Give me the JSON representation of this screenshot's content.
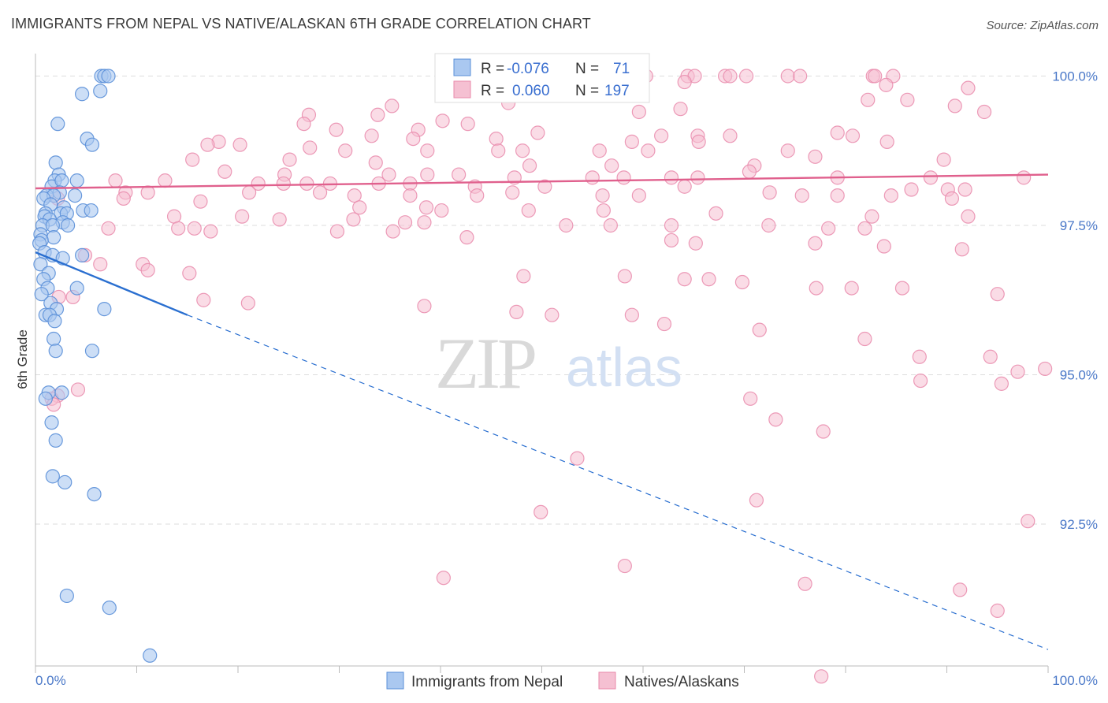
{
  "title": "IMMIGRANTS FROM NEPAL VS NATIVE/ALASKAN 6TH GRADE CORRELATION CHART",
  "source": "Source: ZipAtlas.com",
  "watermark": {
    "zip": "ZIP",
    "atlas": "atlas"
  },
  "colors": {
    "blue_fill": "#aac8f0",
    "blue_stroke": "#5a8fd8",
    "blue_line": "#2a6fd0",
    "pink_fill": "#f5c0d2",
    "pink_stroke": "#e98aab",
    "pink_line": "#e0608d",
    "grid": "#dddddd",
    "tick_text": "#4a78c8"
  },
  "chart_data": {
    "type": "scatter",
    "title": "IMMIGRANTS FROM NEPAL VS NATIVE/ALASKAN 6TH GRADE CORRELATION CHART",
    "xlabel": "",
    "ylabel": "6th Grade",
    "xlim": [
      0,
      100
    ],
    "ylim": [
      90.0,
      100.4
    ],
    "x_tick_labels": [
      "0.0%",
      "100.0%"
    ],
    "y_ticks": [
      100.0,
      97.5,
      95.0,
      92.5
    ],
    "y_tick_labels": [
      "100.0%",
      "97.5%",
      "95.0%",
      "92.5%"
    ],
    "legend": {
      "r_label": "R =",
      "n_label": "N =",
      "entries": [
        {
          "name": "Immigrants from Nepal",
          "r": "-0.076",
          "n": "71"
        },
        {
          "name": "Natives/Alaskans",
          "r": "0.060",
          "n": "197"
        }
      ]
    },
    "series": [
      {
        "name": "Immigrants from Nepal",
        "trend": {
          "x0": 0,
          "y0": 97.05,
          "x1": 15,
          "y1": 96.0,
          "dash_to_x": 100,
          "dash_to_y": 90.4
        },
        "points": [
          [
            6.5,
            100.0
          ],
          [
            6.8,
            100.0
          ],
          [
            7.2,
            100.0
          ],
          [
            4.6,
            99.7
          ],
          [
            6.4,
            99.75
          ],
          [
            2.2,
            99.2
          ],
          [
            5.1,
            98.95
          ],
          [
            5.6,
            98.85
          ],
          [
            2.0,
            98.55
          ],
          [
            2.3,
            98.35
          ],
          [
            1.9,
            98.25
          ],
          [
            4.1,
            98.25
          ],
          [
            1.6,
            98.15
          ],
          [
            2.6,
            98.25
          ],
          [
            2.4,
            98.05
          ],
          [
            1.1,
            98.0
          ],
          [
            1.8,
            98.0
          ],
          [
            3.9,
            98.0
          ],
          [
            0.8,
            97.95
          ],
          [
            1.5,
            97.85
          ],
          [
            2.8,
            97.8
          ],
          [
            4.7,
            97.75
          ],
          [
            5.5,
            97.75
          ],
          [
            1.0,
            97.7
          ],
          [
            2.5,
            97.7
          ],
          [
            3.1,
            97.7
          ],
          [
            0.9,
            97.65
          ],
          [
            1.4,
            97.6
          ],
          [
            2.7,
            97.55
          ],
          [
            0.7,
            97.5
          ],
          [
            1.7,
            97.5
          ],
          [
            3.2,
            97.5
          ],
          [
            0.5,
            97.35
          ],
          [
            1.8,
            97.3
          ],
          [
            0.6,
            97.25
          ],
          [
            0.4,
            97.2
          ],
          [
            0.9,
            97.05
          ],
          [
            1.7,
            97.0
          ],
          [
            2.7,
            96.95
          ],
          [
            4.6,
            97.0
          ],
          [
            0.5,
            96.85
          ],
          [
            1.3,
            96.7
          ],
          [
            0.8,
            96.6
          ],
          [
            1.2,
            96.45
          ],
          [
            4.1,
            96.45
          ],
          [
            0.6,
            96.35
          ],
          [
            1.5,
            96.2
          ],
          [
            2.1,
            96.1
          ],
          [
            6.8,
            96.1
          ],
          [
            1.0,
            96.0
          ],
          [
            1.4,
            96.0
          ],
          [
            1.9,
            95.9
          ],
          [
            1.8,
            95.6
          ],
          [
            2.0,
            95.4
          ],
          [
            5.6,
            95.4
          ],
          [
            1.3,
            94.7
          ],
          [
            2.6,
            94.7
          ],
          [
            1.0,
            94.6
          ],
          [
            1.6,
            94.2
          ],
          [
            2.0,
            93.9
          ],
          [
            1.7,
            93.3
          ],
          [
            2.9,
            93.2
          ],
          [
            5.8,
            93.0
          ],
          [
            3.1,
            91.3
          ],
          [
            7.3,
            91.1
          ],
          [
            11.3,
            90.3
          ]
        ]
      },
      {
        "name": "Natives/Alaskans",
        "trend": {
          "x0": 0,
          "y0": 98.12,
          "x1": 100,
          "y1": 98.35
        },
        "points": [
          [
            60.3,
            100.0
          ],
          [
            64.4,
            100.0
          ],
          [
            65.1,
            100.0
          ],
          [
            68.1,
            100.0
          ],
          [
            68.6,
            100.0
          ],
          [
            70.2,
            100.0
          ],
          [
            74.3,
            100.0
          ],
          [
            75.5,
            100.0
          ],
          [
            82.7,
            100.0
          ],
          [
            82.9,
            100.0
          ],
          [
            84.7,
            100.0
          ],
          [
            64.1,
            99.9
          ],
          [
            84.0,
            99.85
          ],
          [
            92.1,
            99.8
          ],
          [
            82.2,
            99.6
          ],
          [
            86.1,
            99.6
          ],
          [
            46.7,
            99.55
          ],
          [
            90.8,
            99.5
          ],
          [
            35.2,
            99.5
          ],
          [
            63.7,
            99.45
          ],
          [
            93.7,
            99.4
          ],
          [
            59.6,
            99.4
          ],
          [
            27.0,
            99.35
          ],
          [
            33.8,
            99.35
          ],
          [
            40.2,
            99.25
          ],
          [
            42.7,
            99.2
          ],
          [
            26.5,
            99.2
          ],
          [
            29.7,
            99.1
          ],
          [
            37.8,
            99.1
          ],
          [
            49.6,
            99.05
          ],
          [
            79.2,
            99.05
          ],
          [
            61.8,
            99.0
          ],
          [
            68.6,
            99.0
          ],
          [
            80.7,
            99.0
          ],
          [
            33.2,
            99.0
          ],
          [
            65.4,
            99.0
          ],
          [
            37.3,
            98.95
          ],
          [
            45.5,
            98.95
          ],
          [
            58.9,
            98.9
          ],
          [
            65.5,
            98.9
          ],
          [
            84.1,
            98.9
          ],
          [
            18.1,
            98.9
          ],
          [
            17.0,
            98.85
          ],
          [
            20.2,
            98.85
          ],
          [
            27.1,
            98.8
          ],
          [
            30.6,
            98.75
          ],
          [
            38.7,
            98.75
          ],
          [
            45.7,
            98.75
          ],
          [
            48.1,
            98.75
          ],
          [
            55.7,
            98.75
          ],
          [
            60.5,
            98.75
          ],
          [
            74.3,
            98.75
          ],
          [
            77.0,
            98.65
          ],
          [
            89.7,
            98.6
          ],
          [
            15.5,
            98.6
          ],
          [
            25.1,
            98.6
          ],
          [
            33.6,
            98.55
          ],
          [
            48.8,
            98.5
          ],
          [
            56.9,
            98.5
          ],
          [
            71.0,
            98.5
          ],
          [
            70.5,
            98.4
          ],
          [
            18.7,
            98.4
          ],
          [
            24.6,
            98.35
          ],
          [
            34.9,
            98.35
          ],
          [
            38.7,
            98.35
          ],
          [
            41.8,
            98.35
          ],
          [
            47.3,
            98.3
          ],
          [
            55.0,
            98.3
          ],
          [
            58.1,
            98.3
          ],
          [
            62.8,
            98.3
          ],
          [
            65.4,
            98.3
          ],
          [
            79.2,
            98.3
          ],
          [
            88.4,
            98.3
          ],
          [
            97.6,
            98.3
          ],
          [
            7.9,
            98.25
          ],
          [
            12.8,
            98.25
          ],
          [
            22.0,
            98.2
          ],
          [
            24.5,
            98.2
          ],
          [
            26.8,
            98.2
          ],
          [
            29.1,
            98.2
          ],
          [
            33.9,
            98.2
          ],
          [
            37.0,
            98.2
          ],
          [
            43.4,
            98.15
          ],
          [
            50.3,
            98.15
          ],
          [
            64.1,
            98.15
          ],
          [
            86.5,
            98.1
          ],
          [
            90.1,
            98.1
          ],
          [
            91.8,
            98.1
          ],
          [
            47.1,
            98.05
          ],
          [
            72.5,
            98.05
          ],
          [
            8.9,
            98.05
          ],
          [
            11.1,
            98.05
          ],
          [
            21.1,
            98.05
          ],
          [
            28.1,
            98.05
          ],
          [
            31.5,
            98.0
          ],
          [
            37.0,
            98.0
          ],
          [
            43.6,
            98.0
          ],
          [
            56.0,
            98.0
          ],
          [
            59.6,
            98.0
          ],
          [
            75.7,
            98.0
          ],
          [
            79.2,
            98.0
          ],
          [
            84.5,
            98.0
          ],
          [
            90.5,
            97.95
          ],
          [
            2.2,
            97.95
          ],
          [
            8.7,
            97.95
          ],
          [
            16.3,
            97.9
          ],
          [
            32.0,
            97.8
          ],
          [
            38.6,
            97.8
          ],
          [
            40.1,
            97.75
          ],
          [
            48.7,
            97.75
          ],
          [
            56.1,
            97.75
          ],
          [
            67.2,
            97.7
          ],
          [
            82.6,
            97.65
          ],
          [
            92.1,
            97.65
          ],
          [
            13.7,
            97.65
          ],
          [
            20.4,
            97.65
          ],
          [
            24.1,
            97.6
          ],
          [
            31.4,
            97.6
          ],
          [
            36.5,
            97.55
          ],
          [
            38.4,
            97.55
          ],
          [
            52.4,
            97.5
          ],
          [
            56.8,
            97.5
          ],
          [
            62.8,
            97.5
          ],
          [
            72.4,
            97.5
          ],
          [
            78.3,
            97.45
          ],
          [
            81.9,
            97.45
          ],
          [
            7.2,
            97.45
          ],
          [
            14.1,
            97.45
          ],
          [
            15.7,
            97.45
          ],
          [
            17.3,
            97.4
          ],
          [
            29.8,
            97.4
          ],
          [
            35.3,
            97.4
          ],
          [
            42.6,
            97.3
          ],
          [
            62.8,
            97.25
          ],
          [
            65.2,
            97.2
          ],
          [
            77.0,
            97.2
          ],
          [
            83.8,
            97.15
          ],
          [
            91.5,
            97.1
          ],
          [
            4.9,
            97.0
          ],
          [
            6.4,
            96.85
          ],
          [
            10.6,
            96.85
          ],
          [
            11.1,
            96.75
          ],
          [
            15.2,
            96.7
          ],
          [
            48.2,
            96.65
          ],
          [
            58.2,
            96.65
          ],
          [
            64.1,
            96.6
          ],
          [
            66.5,
            96.6
          ],
          [
            69.8,
            96.55
          ],
          [
            77.1,
            96.45
          ],
          [
            80.6,
            96.45
          ],
          [
            85.6,
            96.45
          ],
          [
            95.0,
            96.35
          ],
          [
            2.3,
            96.3
          ],
          [
            3.7,
            96.3
          ],
          [
            16.6,
            96.25
          ],
          [
            21.0,
            96.2
          ],
          [
            38.4,
            96.15
          ],
          [
            47.5,
            96.05
          ],
          [
            51.0,
            96.0
          ],
          [
            58.9,
            96.0
          ],
          [
            62.1,
            95.85
          ],
          [
            71.5,
            95.75
          ],
          [
            81.9,
            95.6
          ],
          [
            87.3,
            95.3
          ],
          [
            94.3,
            95.3
          ],
          [
            99.7,
            95.1
          ],
          [
            97.0,
            95.05
          ],
          [
            87.4,
            94.9
          ],
          [
            95.4,
            94.85
          ],
          [
            4.2,
            94.75
          ],
          [
            2.2,
            94.65
          ],
          [
            70.6,
            94.6
          ],
          [
            1.6,
            94.6
          ],
          [
            1.8,
            94.5
          ],
          [
            73.1,
            94.25
          ],
          [
            77.8,
            94.05
          ],
          [
            53.5,
            93.6
          ],
          [
            71.2,
            92.9
          ],
          [
            49.9,
            92.7
          ],
          [
            98.0,
            92.55
          ],
          [
            58.2,
            91.8
          ],
          [
            40.3,
            91.6
          ],
          [
            76.0,
            91.5
          ],
          [
            91.3,
            91.4
          ],
          [
            95.0,
            91.05
          ],
          [
            77.6,
            89.95
          ]
        ]
      }
    ]
  }
}
